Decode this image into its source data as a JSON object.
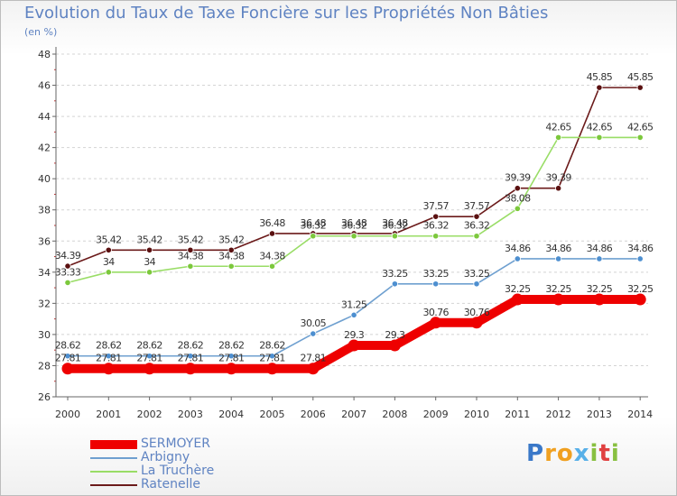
{
  "title": "Evolution du Taux de Taxe Foncière sur les Propriétés Non Bâties",
  "unit_label": "(en %)",
  "logo_text": "Proxiti",
  "chart_data": {
    "type": "line",
    "title": "Evolution du Taux de Taxe Foncière sur les Propriétés Non Bâties",
    "ylabel": "(en %)",
    "ylim": [
      26,
      48
    ],
    "yticks": [
      "26",
      "28",
      "30",
      "32",
      "34",
      "36",
      "38",
      "40",
      "42",
      "44",
      "46",
      "48"
    ],
    "grid": "horizontal dashed",
    "legend": "bottom-left",
    "x": [
      "2000",
      "2001",
      "2002",
      "2003",
      "2004",
      "2005",
      "2006",
      "2007",
      "2008",
      "2009",
      "2010",
      "2011",
      "2012",
      "2013",
      "2014"
    ],
    "series": [
      {
        "name": "Ratenelle",
        "color": "#6b1a1a",
        "dot": "#5a1010",
        "values": [
          34.39,
          35.42,
          35.42,
          35.42,
          35.42,
          36.48,
          36.48,
          36.48,
          36.48,
          37.57,
          37.57,
          39.39,
          39.39,
          45.85,
          45.85
        ],
        "labels": [
          "34.39",
          "35.42",
          "35.42",
          "35.42",
          "35.42",
          "36.48",
          "36.48",
          "36.48",
          "36.48",
          "37.57",
          "37.57",
          "39.39",
          "39.39",
          "45.85",
          "45.85"
        ]
      },
      {
        "name": "La Truchère",
        "color": "#99dd66",
        "dot": "#7cc83c",
        "values": [
          33.33,
          34,
          34,
          34.38,
          34.38,
          34.38,
          36.32,
          36.32,
          36.32,
          36.32,
          36.32,
          38.08,
          42.65,
          42.65,
          42.65
        ],
        "labels": [
          "33.33",
          "34",
          "34",
          "34.38",
          "34.38",
          "34.38",
          "36.32",
          "36.32",
          "36.32",
          "36.32",
          "36.32",
          "38.08",
          "42.65",
          "42.65",
          "42.65"
        ]
      },
      {
        "name": "Arbigny",
        "color": "#6fa0d0",
        "dot": "#4d8fd0",
        "values": [
          28.62,
          28.62,
          28.62,
          28.62,
          28.62,
          28.62,
          30.05,
          31.25,
          33.25,
          33.25,
          33.25,
          34.86,
          34.86,
          34.86,
          34.86
        ],
        "labels": [
          "28.62",
          "28.62",
          "28.62",
          "28.62",
          "28.62",
          "28.62",
          "30.05",
          "31.25",
          "33.25",
          "33.25",
          "33.25",
          "34.86",
          "34.86",
          "34.86",
          "34.86"
        ]
      },
      {
        "name": "SERMOYER",
        "color": "#ee0000",
        "dot": "#ee0000",
        "values": [
          27.81,
          27.81,
          27.81,
          27.81,
          27.81,
          27.81,
          27.81,
          29.3,
          29.3,
          30.76,
          30.76,
          32.25,
          32.25,
          32.25,
          32.25
        ],
        "labels": [
          "27.81",
          "27.81",
          "27.81",
          "27.81",
          "27.81",
          "27.81",
          "27.81",
          "29.3",
          "29.3",
          "30.76",
          "30.76",
          "32.25",
          "32.25",
          "32.25",
          "32.25"
        ]
      }
    ]
  },
  "legend": [
    {
      "name": "SERMOYER",
      "color": "#ee0000"
    },
    {
      "name": "Arbigny",
      "color": "#6fa0d0"
    },
    {
      "name": "La Truchère",
      "color": "#99dd66"
    },
    {
      "name": "Ratenelle",
      "color": "#6b1a1a"
    }
  ]
}
